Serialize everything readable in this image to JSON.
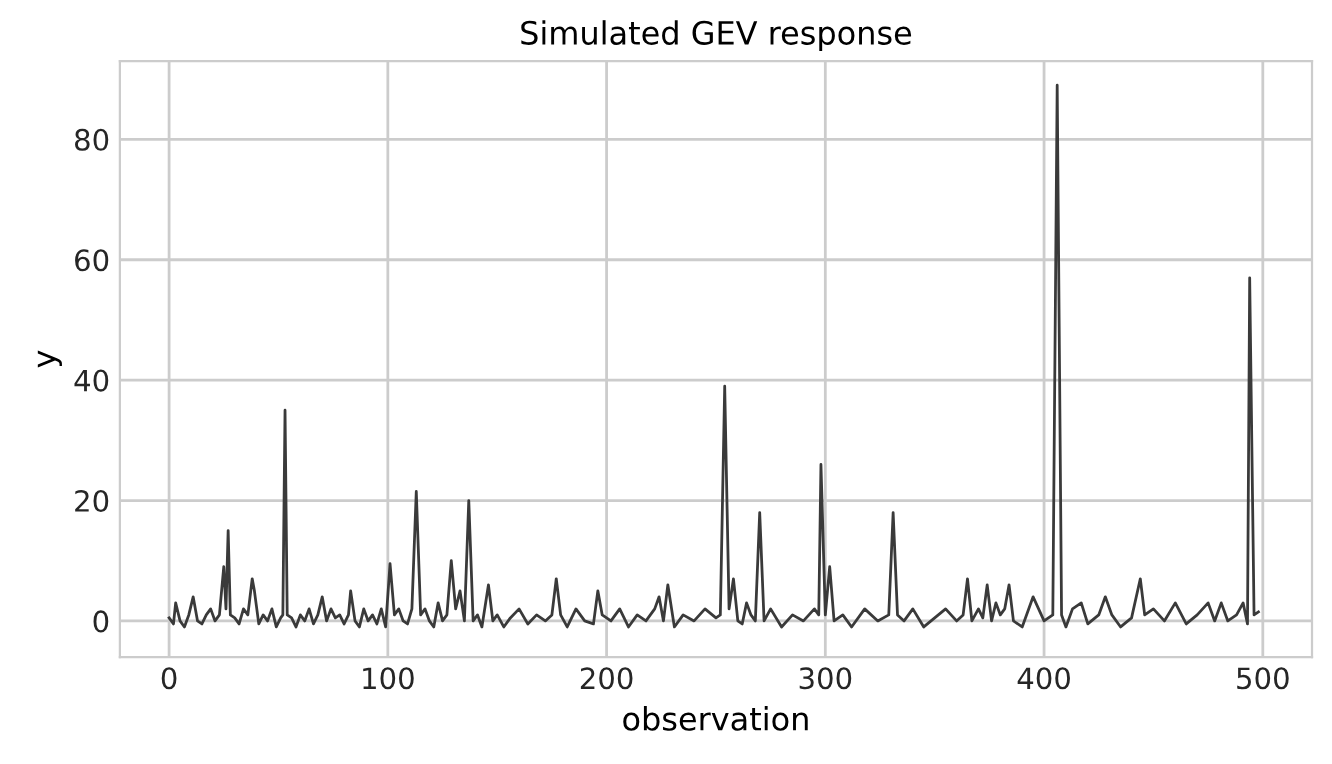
{
  "chart_data": {
    "type": "line",
    "title": "Simulated GEV response",
    "xlabel": "observation",
    "ylabel": "y",
    "series": [
      {
        "color": "#3a3a3a",
        "x": [
          0,
          2,
          3,
          5,
          7,
          9,
          11,
          13,
          15,
          17,
          19,
          21,
          23,
          25,
          26,
          27,
          28,
          30,
          32,
          34,
          36,
          38,
          39,
          41,
          43,
          45,
          47,
          49,
          51,
          52,
          53,
          54,
          56,
          58,
          60,
          62,
          64,
          66,
          68,
          70,
          72,
          74,
          76,
          78,
          80,
          82,
          83,
          85,
          87,
          89,
          91,
          93,
          95,
          97,
          99,
          101,
          103,
          105,
          107,
          109,
          111,
          113,
          115,
          117,
          119,
          121,
          123,
          125,
          127,
          129,
          131,
          133,
          135,
          137,
          139,
          141,
          143,
          146,
          148,
          150,
          153,
          156,
          160,
          164,
          168,
          172,
          175,
          177,
          179,
          182,
          186,
          190,
          194,
          196,
          198,
          202,
          206,
          210,
          214,
          218,
          222,
          224,
          226,
          228,
          231,
          235,
          240,
          245,
          250,
          252,
          254,
          256,
          258,
          260,
          262,
          264,
          266,
          268,
          270,
          272,
          275,
          280,
          285,
          290,
          295,
          297,
          298,
          300,
          302,
          304,
          308,
          312,
          318,
          324,
          329,
          331,
          333,
          336,
          340,
          345,
          350,
          355,
          360,
          363,
          365,
          367,
          370,
          372,
          374,
          376,
          378,
          380,
          382,
          384,
          386,
          390,
          395,
          400,
          404,
          406,
          408,
          410,
          413,
          417,
          420,
          425,
          428,
          431,
          435,
          440,
          444,
          446,
          450,
          455,
          460,
          465,
          470,
          475,
          478,
          481,
          484,
          488,
          491,
          493,
          494,
          496,
          498
        ],
        "values": [
          0.5,
          -0.5,
          3,
          0,
          -1,
          1,
          4,
          0,
          -0.5,
          1,
          2,
          0,
          1,
          9,
          2,
          15,
          1,
          0.5,
          -0.5,
          2,
          1,
          7,
          5,
          -0.5,
          1,
          0,
          2,
          -1,
          0.5,
          1,
          35,
          1,
          0.5,
          -1,
          1,
          0,
          2,
          -0.5,
          1,
          4,
          0,
          2,
          0.5,
          1,
          -0.5,
          1,
          5,
          0,
          -1,
          2,
          0,
          1,
          -0.5,
          2,
          -1,
          9.5,
          1,
          2,
          0,
          -0.5,
          2,
          21.5,
          1,
          2,
          0,
          -1,
          3,
          0,
          1,
          10,
          2,
          5,
          0,
          20,
          0,
          1,
          -1,
          6,
          0,
          1,
          -1,
          0.5,
          2,
          -0.5,
          1,
          0,
          1,
          7,
          1,
          -1,
          2,
          0,
          -0.5,
          5,
          1,
          0,
          2,
          -1,
          1,
          0,
          2,
          4,
          0,
          6,
          -1,
          1,
          0,
          2,
          0.5,
          1,
          39,
          2,
          7,
          0,
          -0.5,
          3,
          1,
          0,
          18,
          0,
          2,
          -1,
          1,
          0,
          2,
          1,
          26,
          1,
          9,
          0,
          1,
          -1,
          2,
          0,
          1,
          18,
          1,
          0,
          2,
          -1,
          0.5,
          2,
          0,
          1,
          7,
          0,
          2,
          0.5,
          6,
          0,
          3,
          1,
          2,
          6,
          0,
          -1,
          4,
          0,
          1,
          89,
          1,
          -1,
          2,
          3,
          -0.5,
          1,
          4,
          1,
          -1,
          0.5,
          7,
          1,
          2,
          0,
          3,
          -0.5,
          1,
          3,
          0,
          3,
          0,
          1,
          3,
          -0.5,
          57,
          1,
          1.5
        ]
      }
    ],
    "xlim": [
      -22.5,
      522.5
    ],
    "ylim": [
      -6,
      93
    ],
    "xticks": [
      0,
      100,
      200,
      300,
      400,
      500
    ],
    "yticks": [
      0,
      20,
      40,
      60,
      80
    ],
    "grid": true,
    "line_style": "solid",
    "marker": "none",
    "legend": false
  }
}
